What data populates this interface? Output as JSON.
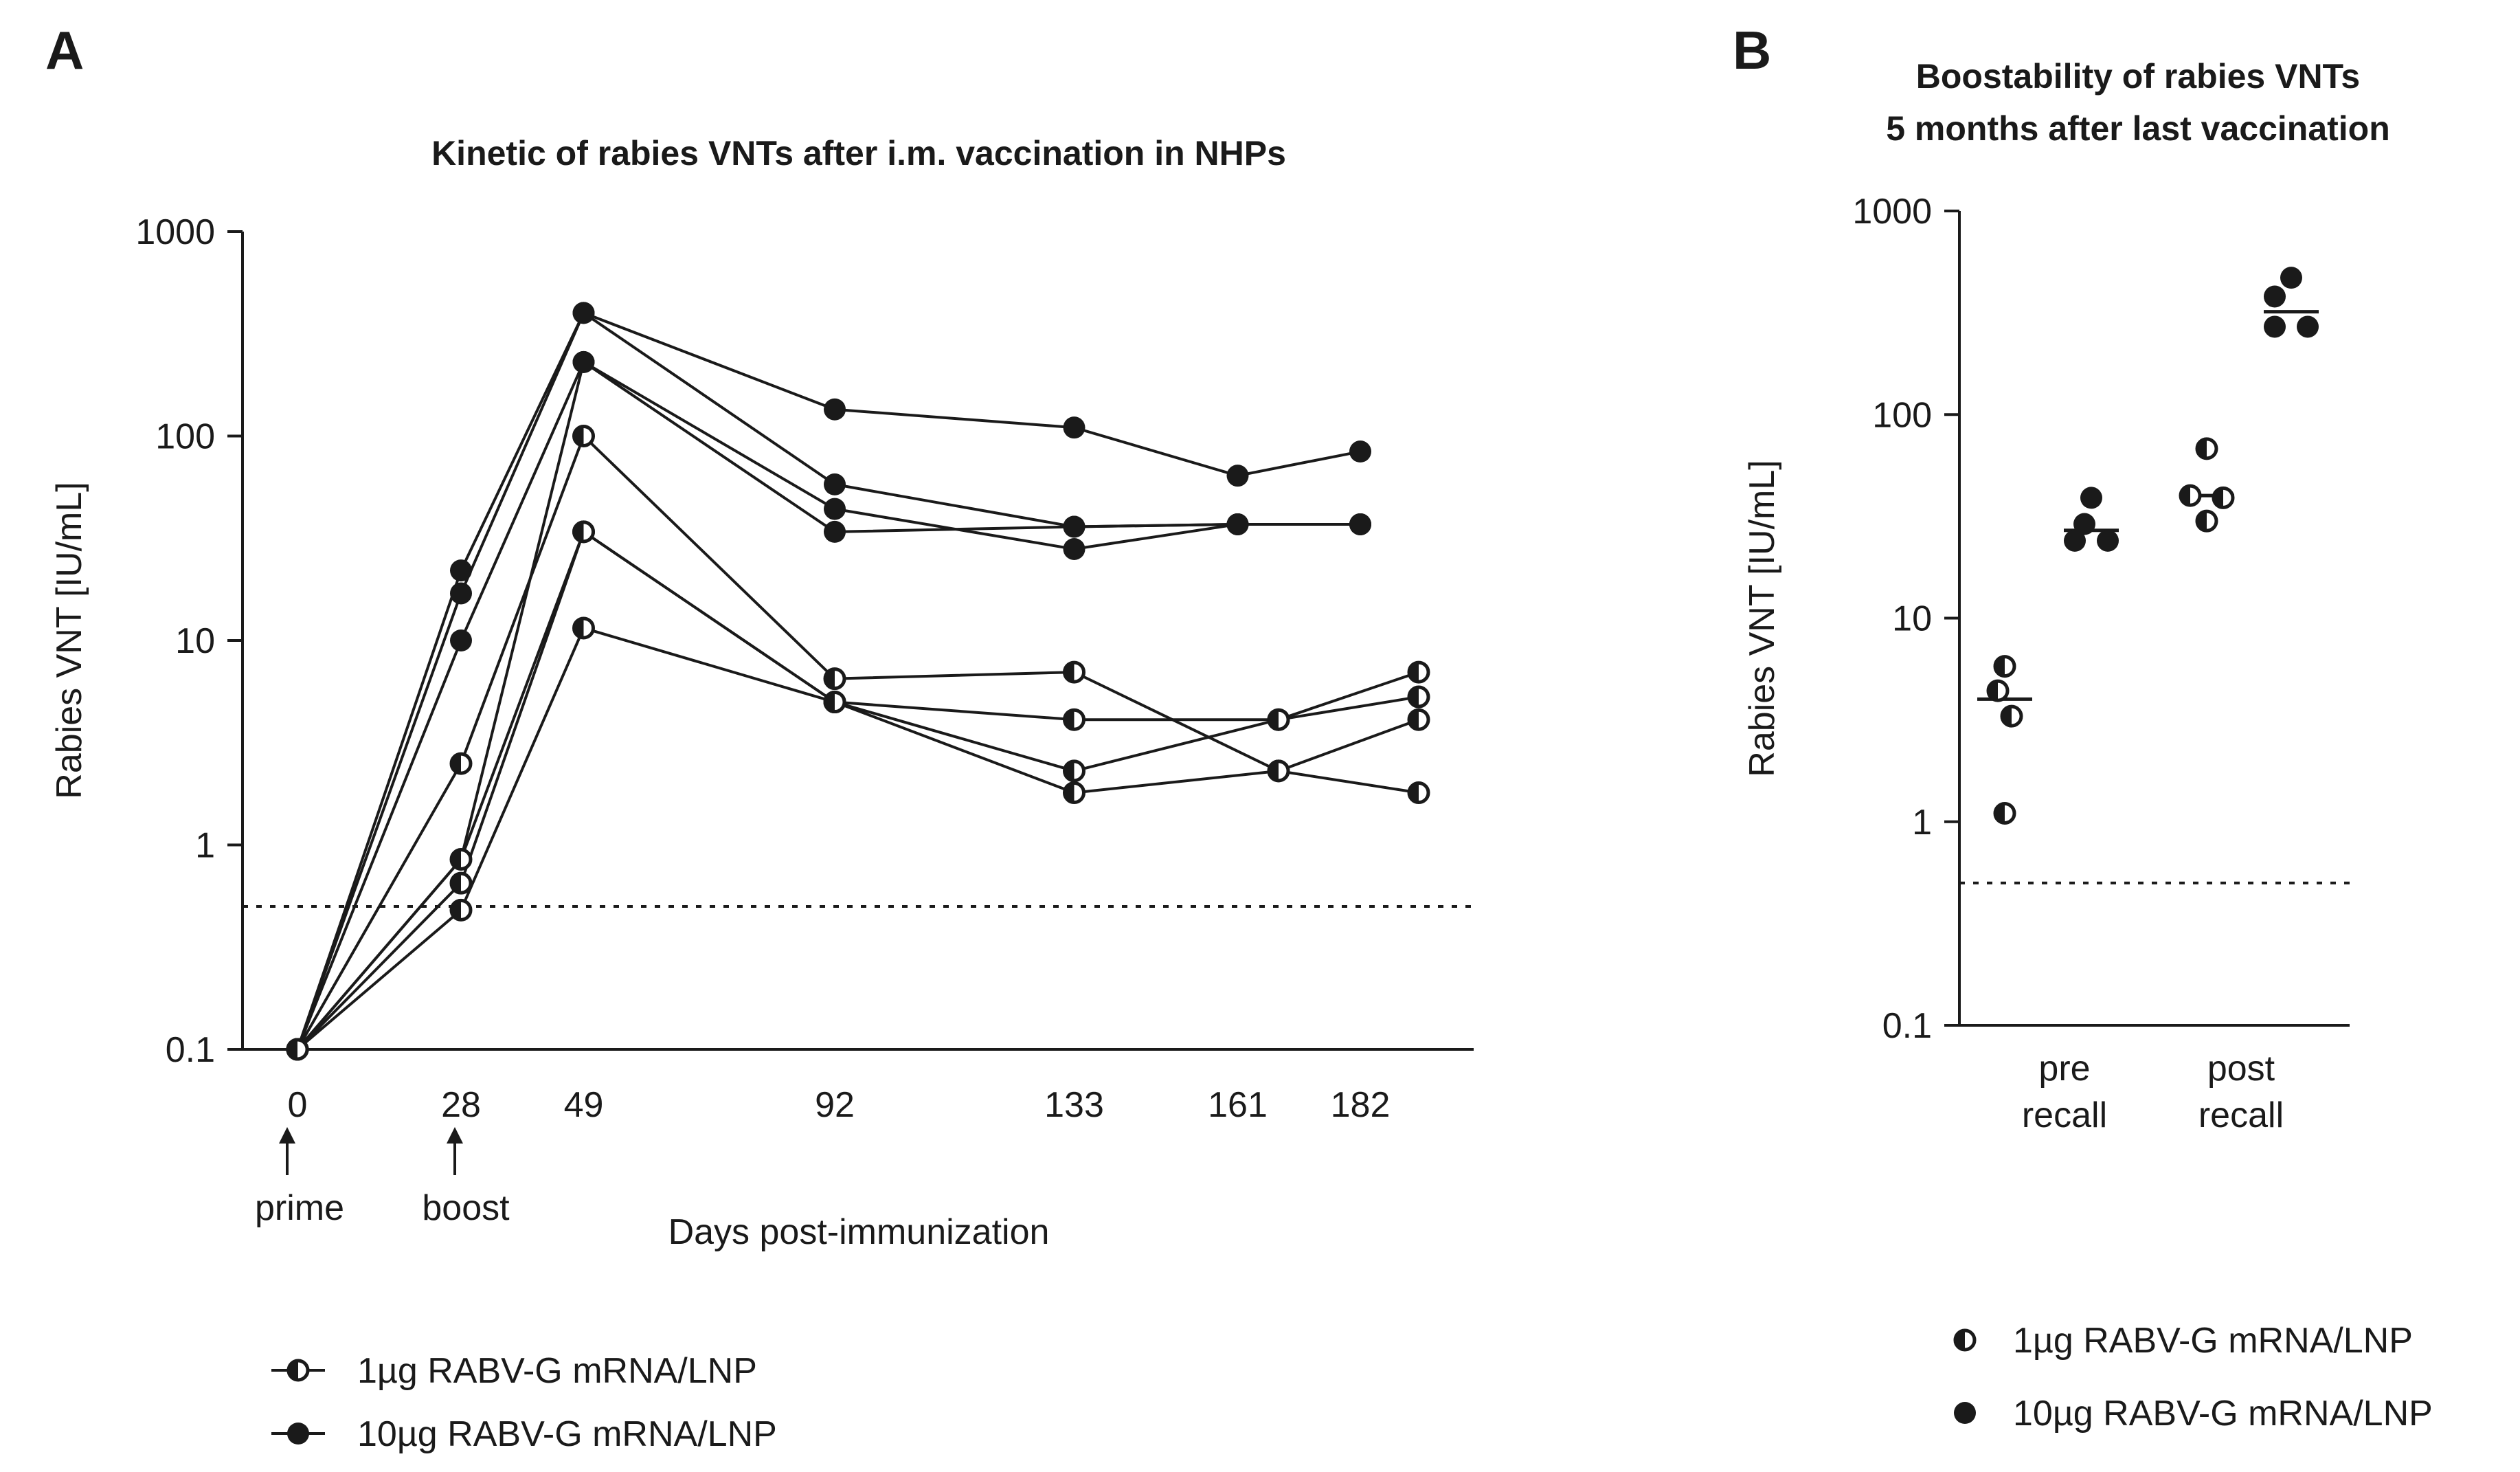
{
  "chart_data": [
    {
      "panel": "A",
      "type": "line",
      "title": "Kinetic of rabies VNTs after i.m. vaccination in NHPs",
      "xlabel": "Days post-immunization",
      "ylabel": "Rabies VNT [IU/mL]",
      "yscale": "log",
      "ylim": [
        0.1,
        1000
      ],
      "yticks": [
        "0.1",
        "1",
        "10",
        "100",
        "1000"
      ],
      "xticks": [
        "0",
        "28",
        "49",
        "92",
        "133",
        "161",
        "182"
      ],
      "annotations": [
        {
          "label": "prime",
          "x": 0
        },
        {
          "label": "boost",
          "x": 28
        }
      ],
      "detection_limit": 0.5,
      "legend": [
        {
          "label": "1µg RABV-G mRNA/LNP",
          "marker": "half"
        },
        {
          "label": "10µg RABV-G mRNA/LNP",
          "marker": "filled"
        }
      ],
      "series": [
        {
          "name": "10µg animal 1",
          "group": "10µg",
          "x": [
            0,
            28,
            49,
            92,
            133,
            161,
            182
          ],
          "y": [
            0.1,
            22,
            400,
            135,
            110,
            64,
            84
          ]
        },
        {
          "name": "10µg animal 2",
          "group": "10µg",
          "x": [
            0,
            28,
            49,
            92,
            133,
            161,
            182
          ],
          "y": [
            0.1,
            17,
            400,
            58,
            36,
            37,
            37
          ]
        },
        {
          "name": "10µg animal 3",
          "group": "10µg",
          "x": [
            0,
            28,
            49,
            92,
            133,
            161,
            182
          ],
          "y": [
            0.1,
            10,
            230,
            44,
            28,
            37,
            37
          ]
        },
        {
          "name": "10µg animal 4",
          "group": "10µg",
          "x": [
            0,
            28,
            49,
            92,
            133,
            161,
            182
          ],
          "y": [
            0.1,
            0.85,
            230,
            34,
            36,
            37,
            37
          ]
        },
        {
          "name": "1µg animal 1",
          "group": "1µg",
          "x": [
            0,
            28,
            49,
            92,
            133,
            168,
            192
          ],
          "y": [
            0.1,
            2.5,
            100,
            6.5,
            7.0,
            2.3,
            1.8
          ]
        },
        {
          "name": "1µg animal 2",
          "group": "1µg",
          "x": [
            0,
            28,
            49,
            92,
            133,
            168,
            192
          ],
          "y": [
            0.1,
            0.85,
            34,
            5.0,
            2.3,
            4.1,
            7.0
          ]
        },
        {
          "name": "1µg animal 3",
          "group": "1µg",
          "x": [
            0,
            28,
            49,
            92,
            133,
            168,
            192
          ],
          "y": [
            0.1,
            0.65,
            34,
            5.0,
            4.1,
            4.1,
            5.3
          ]
        },
        {
          "name": "1µg animal 4",
          "group": "1µg",
          "x": [
            0,
            28,
            49,
            92,
            133,
            168,
            192
          ],
          "y": [
            0.1,
            0.48,
            11.5,
            5.0,
            1.8,
            2.3,
            4.1
          ]
        }
      ]
    },
    {
      "panel": "B",
      "type": "scatter",
      "title": "Boostability of rabies VNTs 5 months after last vaccination",
      "title_lines": [
        "Boostability of rabies VNTs",
        "5 months after last vaccination"
      ],
      "ylabel": "Rabies VNT [IU/mL]",
      "yscale": "log",
      "ylim": [
        0.1,
        1000
      ],
      "yticks": [
        "0.1",
        "1",
        "10",
        "100",
        "1000"
      ],
      "categories": [
        "pre recall",
        "post recall"
      ],
      "category_lines": [
        [
          "pre",
          "recall"
        ],
        [
          "post",
          "recall"
        ]
      ],
      "detection_limit": 0.5,
      "legend": [
        {
          "label": "1µg RABV-G mRNA/LNP",
          "marker": "half"
        },
        {
          "label": "10µg RABV-G mRNA/LNP",
          "marker": "filled"
        }
      ],
      "series": [
        {
          "name": "1µg RABV-G mRNA/LNP",
          "marker": "half",
          "pre recall": [
            5.8,
            4.4,
            3.3,
            1.1
          ],
          "post recall": [
            68,
            40,
            39,
            30
          ],
          "mean": {
            "pre recall": 4.0,
            "post recall": 40
          }
        },
        {
          "name": "10µg RABV-G mRNA/LNP",
          "marker": "filled",
          "pre recall": [
            39,
            29,
            24,
            24
          ],
          "post recall": [
            470,
            380,
            270,
            270
          ],
          "mean": {
            "pre recall": 27,
            "post recall": 320
          }
        }
      ]
    }
  ],
  "panels": {
    "a": {
      "letter": "A"
    },
    "b": {
      "letter": "B"
    }
  }
}
